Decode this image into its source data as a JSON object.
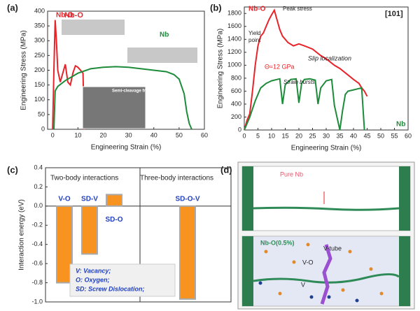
{
  "chart_data": [
    {
      "type": "line",
      "label": "(a)",
      "xlabel": "Engineering Strain (%)",
      "ylabel": "Engineering Stress (MPa)",
      "xlim": [
        -2,
        60
      ],
      "xticks": [
        0,
        10,
        20,
        30,
        40,
        50,
        60
      ],
      "ylim": [
        0,
        400
      ],
      "yticks": [
        0,
        50,
        100,
        150,
        200,
        250,
        300,
        350,
        400
      ],
      "series": [
        {
          "name": "Nb-O",
          "color": "#e8242a",
          "x": [
            0,
            0.5,
            1,
            1.5,
            2,
            3,
            4,
            5,
            6,
            7,
            8,
            9,
            10,
            11,
            12,
            12.5
          ],
          "values": [
            0,
            200,
            370,
            300,
            200,
            160,
            190,
            220,
            160,
            150,
            190,
            215,
            210,
            200,
            190,
            0
          ]
        },
        {
          "name": "Nb",
          "color": "#1e8b3a",
          "x": [
            0.5,
            1,
            2,
            5,
            10,
            15,
            20,
            25,
            30,
            35,
            40,
            45,
            48,
            50,
            52,
            53,
            54,
            55
          ],
          "values": [
            0,
            130,
            145,
            165,
            190,
            205,
            210,
            212,
            210,
            205,
            200,
            195,
            185,
            170,
            120,
            60,
            20,
            0
          ]
        }
      ],
      "annotations": [
        "Nb-O",
        "Semi-cleavage fracture"
      ]
    },
    {
      "type": "line",
      "label": "(b)",
      "xlabel": "Engineering Strain (%)",
      "ylabel": "Engineering Stress (MPa)",
      "xlim": [
        0,
        60
      ],
      "xticks": [
        0,
        5,
        10,
        15,
        20,
        25,
        30,
        35,
        40,
        45,
        50,
        55,
        60
      ],
      "ylim": [
        0,
        1900
      ],
      "yticks": [
        0,
        200,
        400,
        600,
        800,
        1000,
        1200,
        1400,
        1600,
        1800
      ],
      "series": [
        {
          "name": "Nb-O",
          "color": "#e8242a",
          "x": [
            0,
            1,
            2,
            3,
            4,
            5,
            6,
            7,
            8,
            9,
            10,
            11,
            12,
            13,
            14,
            16,
            18,
            20,
            22,
            25,
            28,
            30,
            33,
            35,
            38,
            40,
            42,
            43,
            44,
            45
          ],
          "values": [
            0,
            150,
            250,
            600,
            1000,
            1300,
            1450,
            1500,
            1600,
            1700,
            1780,
            1850,
            1700,
            1550,
            1450,
            1350,
            1300,
            1330,
            1300,
            1250,
            1150,
            1100,
            1000,
            950,
            850,
            780,
            720,
            650,
            600,
            520
          ]
        },
        {
          "name": "Nb",
          "color": "#1e8b3a",
          "x": [
            0,
            2,
            4,
            6,
            8,
            10,
            12,
            13,
            14,
            15,
            17,
            19,
            20,
            21,
            22,
            24,
            26,
            27,
            28,
            30,
            32,
            33,
            35,
            36,
            37,
            38,
            40,
            42,
            43,
            44
          ],
          "values": [
            0,
            200,
            450,
            650,
            720,
            760,
            780,
            790,
            400,
            700,
            780,
            790,
            420,
            720,
            780,
            790,
            770,
            400,
            650,
            760,
            780,
            380,
            0,
            300,
            550,
            600,
            620,
            640,
            650,
            0
          ]
        }
      ],
      "annotations": [
        "Peak stress",
        "Yield",
        "point",
        "Θ≈12 GPa",
        "Slip localization",
        "Strain bursts",
        "[101]"
      ]
    },
    {
      "type": "bar",
      "label": "(c)",
      "ylabel": "Interaction energy (eV)",
      "categories": [
        "V-O",
        "SD-V",
        "SD-O",
        "SD-O-V"
      ],
      "values": [
        -0.8,
        -0.5,
        0.12,
        -0.97
      ],
      "color": "#f7931e",
      "ylim": [
        -1.0,
        0.4
      ],
      "yticks": [
        {
          "value": 0.4,
          "label": "0.4"
        },
        {
          "value": 0.2,
          "label": "0.2"
        },
        {
          "value": 0,
          "label": "0.0"
        },
        {
          "value": -0.2,
          "label": "-0.2"
        },
        {
          "value": -0.4,
          "label": "-0.4"
        },
        {
          "value": -0.6,
          "label": "-0.6"
        },
        {
          "value": -0.8,
          "label": "-0.8"
        },
        {
          "value": -1.0,
          "label": "-1.0"
        }
      ],
      "annotations": [
        "Two-body interactions",
        "Three-body interactions"
      ],
      "legend": [
        "V: Vacancy;",
        "O: Oxygen;",
        "SD:  Screw Dislocation;"
      ]
    }
  ],
  "panel_d": {
    "label": "(d)",
    "texts": [
      "Pure Nb",
      "Nb-O(0.5%)",
      "V-tube",
      "V-O",
      "V"
    ]
  }
}
